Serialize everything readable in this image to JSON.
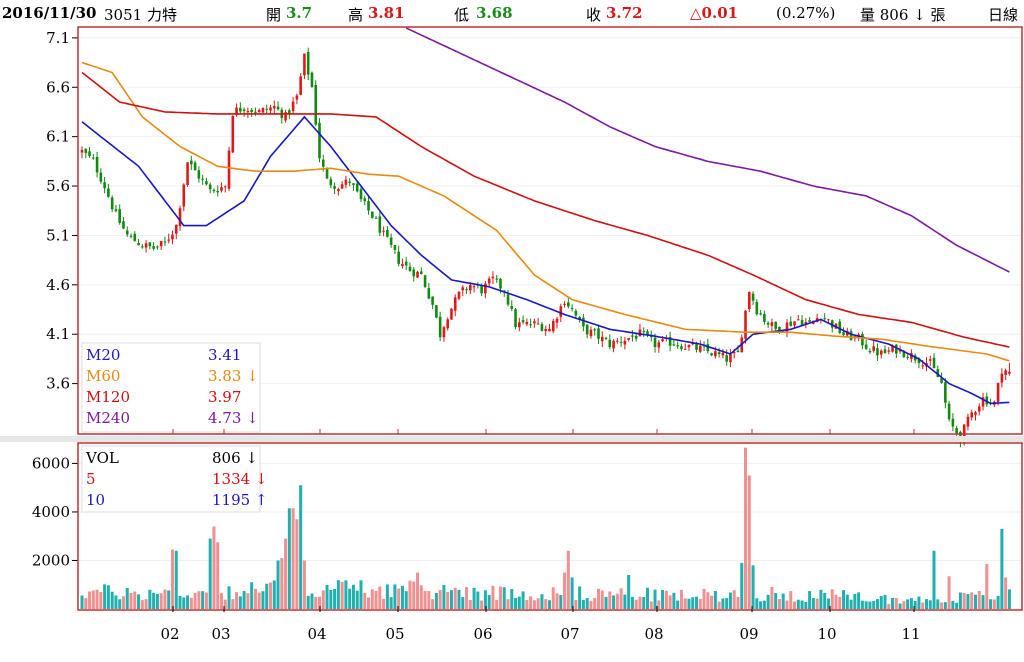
{
  "header": {
    "date": "2016/11/30",
    "stock": "3051 力特",
    "open_label": "開",
    "open_value": "3.7",
    "high_label": "高",
    "high_value": "3.81",
    "low_label": "低",
    "low_value": "3.68",
    "close_label": "收",
    "close_value": "3.72",
    "change": "△0.01",
    "change_pct": "(0.27%)",
    "volume": "量 806 ↓ 張",
    "period": "日線"
  },
  "colors": {
    "up": "#e01818",
    "down": "#108a10",
    "ma20": "#1818c0",
    "ma60": "#e88a10",
    "ma120": "#d01010",
    "ma240": "#7a1aa0",
    "vol_up": "#f09090",
    "vol_down": "#20b0b0",
    "ma5": "#d01010",
    "ma10": "#1818c0",
    "frame": "#c03030"
  },
  "price_legend": [
    {
      "name": "M20",
      "value": "3.41",
      "arrow": ""
    },
    {
      "name": "M60",
      "value": "3.83",
      "arrow": "↓"
    },
    {
      "name": "M120",
      "value": "3.97",
      "arrow": ""
    },
    {
      "name": "M240",
      "value": "4.73",
      "arrow": "↓"
    }
  ],
  "volume_legend": [
    {
      "name": "VOL",
      "value": "806",
      "arrow": "↓"
    },
    {
      "name": "5",
      "value": "1334",
      "arrow": "↓"
    },
    {
      "name": "10",
      "value": "1195",
      "arrow": "↑"
    }
  ],
  "chart_data": [
    {
      "type": "candlestick",
      "ylim": [
        3.1,
        7.2
      ],
      "yticks": [
        "7.1",
        "6.6",
        "6.1",
        "5.6",
        "5.1",
        "4.6",
        "4.1",
        "3.6"
      ],
      "xticks": [
        "02",
        "03",
        "04",
        "05",
        "06",
        "07",
        "08",
        "09",
        "10",
        "11"
      ],
      "close_anchors": [
        [
          0,
          5.95
        ],
        [
          3,
          5.85
        ],
        [
          6,
          5.6
        ],
        [
          9,
          5.3
        ],
        [
          12,
          5.1
        ],
        [
          16,
          5.0
        ],
        [
          19,
          4.97
        ],
        [
          22,
          5.02
        ],
        [
          25,
          5.2
        ],
        [
          28,
          5.85
        ],
        [
          31,
          5.7
        ],
        [
          34,
          5.55
        ],
        [
          38,
          5.6
        ],
        [
          40,
          6.35
        ],
        [
          43,
          6.4
        ],
        [
          47,
          6.35
        ],
        [
          51,
          6.4
        ],
        [
          54,
          6.3
        ],
        [
          57,
          6.5
        ],
        [
          59,
          6.9
        ],
        [
          61,
          6.6
        ],
        [
          63,
          5.9
        ],
        [
          65,
          5.65
        ],
        [
          68,
          5.6
        ],
        [
          71,
          5.65
        ],
        [
          74,
          5.45
        ],
        [
          77,
          5.3
        ],
        [
          80,
          5.1
        ],
        [
          84,
          4.85
        ],
        [
          87,
          4.75
        ],
        [
          90,
          4.7
        ],
        [
          93,
          4.4
        ],
        [
          95,
          4.1
        ],
        [
          97,
          4.3
        ],
        [
          100,
          4.5
        ],
        [
          103,
          4.6
        ],
        [
          106,
          4.55
        ],
        [
          109,
          4.65
        ],
        [
          112,
          4.55
        ],
        [
          115,
          4.2
        ],
        [
          118,
          4.2
        ],
        [
          121,
          4.2
        ],
        [
          124,
          4.15
        ],
        [
          126,
          4.3
        ],
        [
          128,
          4.45
        ],
        [
          130,
          4.35
        ],
        [
          133,
          4.15
        ],
        [
          136,
          4.1
        ],
        [
          140,
          4.0
        ],
        [
          144,
          4.05
        ],
        [
          148,
          4.1
        ],
        [
          152,
          4.0
        ],
        [
          156,
          4.02
        ],
        [
          160,
          3.98
        ],
        [
          164,
          3.95
        ],
        [
          168,
          3.9
        ],
        [
          171,
          3.85
        ],
        [
          174,
          3.9
        ],
        [
          177,
          4.55
        ],
        [
          179,
          4.35
        ],
        [
          181,
          4.25
        ],
        [
          184,
          4.15
        ],
        [
          187,
          4.2
        ],
        [
          190,
          4.25
        ],
        [
          193,
          4.2
        ],
        [
          196,
          4.3
        ],
        [
          199,
          4.2
        ],
        [
          202,
          4.1
        ],
        [
          206,
          4.05
        ],
        [
          209,
          3.95
        ],
        [
          212,
          3.9
        ],
        [
          216,
          3.95
        ],
        [
          219,
          3.9
        ],
        [
          222,
          3.85
        ],
        [
          225,
          3.8
        ],
        [
          228,
          3.6
        ],
        [
          230,
          3.2
        ],
        [
          233,
          3.06
        ],
        [
          236,
          3.3
        ],
        [
          239,
          3.45
        ],
        [
          242,
          3.4
        ],
        [
          244,
          3.75
        ],
        [
          246,
          3.72
        ]
      ],
      "ma_anchors": {
        "M20": [
          [
            0,
            6.25
          ],
          [
            15,
            5.8
          ],
          [
            27,
            5.2
          ],
          [
            33,
            5.2
          ],
          [
            43,
            5.45
          ],
          [
            50,
            5.9
          ],
          [
            59,
            6.3
          ],
          [
            66,
            6.0
          ],
          [
            74,
            5.6
          ],
          [
            82,
            5.2
          ],
          [
            90,
            4.9
          ],
          [
            98,
            4.65
          ],
          [
            108,
            4.58
          ],
          [
            118,
            4.45
          ],
          [
            128,
            4.3
          ],
          [
            140,
            4.15
          ],
          [
            152,
            4.08
          ],
          [
            164,
            4.0
          ],
          [
            172,
            3.9
          ],
          [
            178,
            4.1
          ],
          [
            188,
            4.15
          ],
          [
            196,
            4.25
          ],
          [
            204,
            4.1
          ],
          [
            214,
            4.0
          ],
          [
            222,
            3.85
          ],
          [
            230,
            3.6
          ],
          [
            236,
            3.5
          ],
          [
            241,
            3.4
          ],
          [
            246,
            3.41
          ]
        ],
        "M60": [
          [
            0,
            6.85
          ],
          [
            8,
            6.75
          ],
          [
            16,
            6.3
          ],
          [
            26,
            6.0
          ],
          [
            36,
            5.8
          ],
          [
            46,
            5.75
          ],
          [
            56,
            5.75
          ],
          [
            66,
            5.78
          ],
          [
            76,
            5.72
          ],
          [
            84,
            5.7
          ],
          [
            96,
            5.5
          ],
          [
            110,
            5.15
          ],
          [
            120,
            4.7
          ],
          [
            130,
            4.45
          ],
          [
            144,
            4.3
          ],
          [
            160,
            4.15
          ],
          [
            176,
            4.12
          ],
          [
            188,
            4.12
          ],
          [
            200,
            4.08
          ],
          [
            212,
            4.05
          ],
          [
            226,
            3.97
          ],
          [
            240,
            3.9
          ],
          [
            246,
            3.83
          ]
        ],
        "M120": [
          [
            0,
            6.75
          ],
          [
            10,
            6.45
          ],
          [
            22,
            6.35
          ],
          [
            36,
            6.33
          ],
          [
            50,
            6.33
          ],
          [
            66,
            6.33
          ],
          [
            78,
            6.3
          ],
          [
            90,
            6.0
          ],
          [
            104,
            5.7
          ],
          [
            120,
            5.45
          ],
          [
            136,
            5.25
          ],
          [
            150,
            5.1
          ],
          [
            166,
            4.9
          ],
          [
            178,
            4.7
          ],
          [
            192,
            4.45
          ],
          [
            206,
            4.3
          ],
          [
            220,
            4.22
          ],
          [
            234,
            4.07
          ],
          [
            246,
            3.97
          ]
        ],
        "M240": [
          [
            86,
            7.2
          ],
          [
            100,
            6.95
          ],
          [
            114,
            6.7
          ],
          [
            128,
            6.45
          ],
          [
            140,
            6.2
          ],
          [
            152,
            6.0
          ],
          [
            166,
            5.85
          ],
          [
            180,
            5.75
          ],
          [
            194,
            5.6
          ],
          [
            208,
            5.5
          ],
          [
            220,
            5.3
          ],
          [
            232,
            5.0
          ],
          [
            246,
            4.73
          ]
        ]
      },
      "last": {
        "open": 3.7,
        "high": 3.81,
        "low": 3.68,
        "close": 3.72
      }
    },
    {
      "type": "bar",
      "ylim": [
        0,
        6800
      ],
      "yticks": [
        "6000",
        "4000",
        "2000"
      ],
      "spikes": [
        [
          24,
          2450
        ],
        [
          25,
          2400
        ],
        [
          34,
          2900
        ],
        [
          35,
          3400
        ],
        [
          36,
          2750
        ],
        [
          52,
          2000
        ],
        [
          53,
          2100
        ],
        [
          54,
          2900
        ],
        [
          55,
          4150
        ],
        [
          56,
          4150
        ],
        [
          57,
          3700
        ],
        [
          58,
          5100
        ],
        [
          59,
          2000
        ],
        [
          89,
          1500
        ],
        [
          102,
          900
        ],
        [
          128,
          1500
        ],
        [
          129,
          2400
        ],
        [
          130,
          1300
        ],
        [
          145,
          1400
        ],
        [
          175,
          1900
        ],
        [
          176,
          6650
        ],
        [
          177,
          5500
        ],
        [
          178,
          1800
        ],
        [
          226,
          2400
        ],
        [
          230,
          1350
        ],
        [
          240,
          1850
        ],
        [
          244,
          3300
        ],
        [
          245,
          1300
        ]
      ],
      "base_levels": [
        [
          0,
          800
        ],
        [
          20,
          700
        ],
        [
          40,
          800
        ],
        [
          60,
          1000
        ],
        [
          80,
          900
        ],
        [
          100,
          800
        ],
        [
          120,
          700
        ],
        [
          140,
          700
        ],
        [
          160,
          600
        ],
        [
          180,
          700
        ],
        [
          200,
          600
        ],
        [
          220,
          400
        ],
        [
          240,
          600
        ],
        [
          246,
          806
        ]
      ]
    }
  ]
}
